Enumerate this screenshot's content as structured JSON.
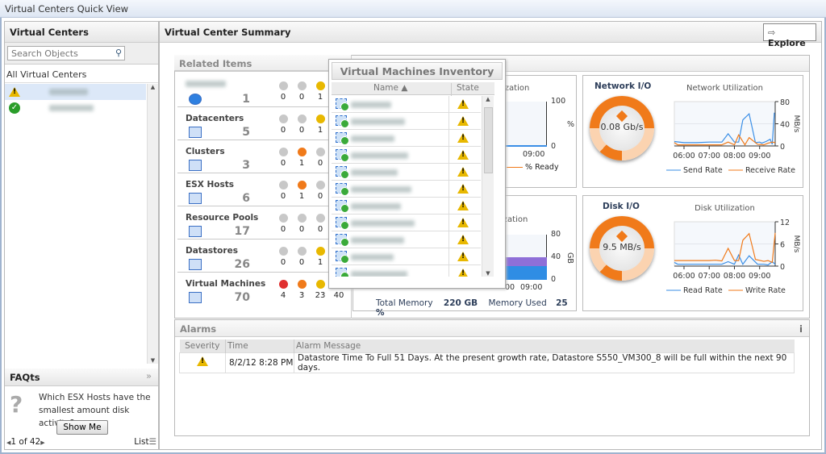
{
  "window": {
    "title": "Virtual Centers Quick View"
  },
  "left": {
    "title": "Virtual Centers",
    "search_placeholder": "Search Objects",
    "all_label": "All Virtual Centers",
    "centers": [
      {
        "status": "warning"
      },
      {
        "status": "ok"
      }
    ],
    "faq": {
      "title": "FAQts",
      "question": "Which ESX Hosts have the smallest amount disk activity?",
      "button": "Show Me",
      "pager": "1 of 42",
      "list_label": "List"
    }
  },
  "summary": {
    "title": "Virtual Center Summary",
    "explore": "Explore",
    "related": {
      "title": "Related Items",
      "items": [
        {
          "label": "",
          "count": "1",
          "icon": "vcenter-icon",
          "sev": [
            "0",
            "0",
            "1"
          ],
          "sev_active": [
            false,
            false,
            true
          ]
        },
        {
          "label": "Datacenters",
          "count": "5",
          "icon": "datacenter-icon",
          "sev": [
            "0",
            "0",
            "1"
          ],
          "sev_active": [
            false,
            false,
            true
          ]
        },
        {
          "label": "Clusters",
          "count": "3",
          "icon": "cluster-icon",
          "sev": [
            "0",
            "1",
            "0"
          ],
          "sev_active": [
            false,
            true,
            false
          ]
        },
        {
          "label": "ESX Hosts",
          "count": "6",
          "icon": "host-icon",
          "sev": [
            "0",
            "1",
            "0"
          ],
          "sev_active": [
            false,
            true,
            false
          ]
        },
        {
          "label": "Resource Pools",
          "count": "17",
          "icon": "resource-pool-icon",
          "sev": [
            "0",
            "0",
            "0"
          ],
          "sev_active": [
            false,
            false,
            false
          ]
        },
        {
          "label": "Datastores",
          "count": "26",
          "icon": "datastore-icon",
          "sev": [
            "0",
            "0",
            "1"
          ],
          "sev_active": [
            false,
            false,
            true
          ]
        },
        {
          "label": "Virtual Machines",
          "count": "70",
          "icon": "vm-icon",
          "sev": [
            "4",
            "3",
            "23",
            "40"
          ],
          "sev_active": [
            true,
            true,
            true,
            true
          ]
        }
      ]
    },
    "cpu": {
      "title_fragment": "ization",
      "y_ticks": [
        "100",
        "0"
      ],
      "unit": "%",
      "x_tick": "09:00",
      "legend": "% Ready"
    },
    "memory": {
      "title_fragment": "ization",
      "y_ticks": [
        "80",
        "40",
        "0"
      ],
      "unit": "GB",
      "x_ticks": [
        "00",
        "09:00"
      ],
      "total_label": "Total Memory",
      "total_value": "220 GB",
      "used_label": "Memory Used",
      "used_value": "25 %"
    },
    "network": {
      "gauge_title": "Network I/O",
      "gauge_value": "0.08 Gb/s"
    },
    "disk": {
      "gauge_title": "Disk I/O",
      "gauge_value": "9.5 MB/s"
    }
  },
  "inventory": {
    "title": "Virtual Machines Inventory",
    "col_name": "Name ▲",
    "col_state": "State",
    "rows": 11,
    "state": "warning"
  },
  "alarms": {
    "title": "Alarms",
    "info": "i",
    "columns": [
      "Severity",
      "Time",
      "Alarm Message"
    ],
    "rows": [
      {
        "severity": "warning",
        "time": "8/2/12 8:28 PM",
        "message": "Datastore Time To Full 51 Days. At the present growth rate, Datastore S550_VM300_8 will be full within the next 90 days."
      }
    ]
  },
  "chart_data": [
    {
      "type": "line",
      "title": "Network Utilization",
      "ylabel": "MB/s",
      "ylim": [
        0,
        80
      ],
      "y_ticks": [
        "80",
        "40",
        "0"
      ],
      "x_ticks": [
        "06:00",
        "07:00",
        "08:00",
        "09:00"
      ],
      "xlim": [
        "05:37",
        "09:37"
      ],
      "series": [
        {
          "name": "Send Rate",
          "color": "#3a8ee6",
          "x": [
            "05:37",
            "06:00",
            "06:30",
            "07:00",
            "07:30",
            "07:45",
            "08:00",
            "08:10",
            "08:20",
            "08:35",
            "08:50",
            "09:00",
            "09:05",
            "09:15",
            "09:25",
            "09:30",
            "09:35"
          ],
          "y": [
            8,
            6,
            6,
            7,
            7,
            22,
            7,
            7,
            47,
            58,
            6,
            7,
            5,
            8,
            12,
            3,
            60
          ]
        },
        {
          "name": "Receive Rate",
          "color": "#f07a1a",
          "x": [
            "05:37",
            "05:45",
            "07:30",
            "07:45",
            "08:00",
            "08:10",
            "08:25",
            "08:35",
            "08:55",
            "09:10",
            "09:20",
            "09:30",
            "09:37"
          ],
          "y": [
            6,
            2,
            2,
            7,
            2,
            20,
            2,
            15,
            3,
            2,
            5,
            7,
            6
          ]
        }
      ]
    },
    {
      "type": "line",
      "title": "Disk Utilization",
      "ylabel": "MB/s",
      "ylim": [
        0,
        12
      ],
      "y_ticks": [
        "12",
        "6",
        "0"
      ],
      "x_ticks": [
        "06:00",
        "07:00",
        "08:00",
        "09:00"
      ],
      "xlim": [
        "05:37",
        "09:37"
      ],
      "series": [
        {
          "name": "Read Rate",
          "color": "#3a8ee6",
          "x": [
            "05:37",
            "05:45",
            "07:30",
            "07:45",
            "08:00",
            "08:10",
            "08:20",
            "08:35",
            "08:55",
            "09:10",
            "09:20",
            "09:30",
            "09:37"
          ],
          "y": [
            1,
            0.5,
            0.5,
            1.2,
            0.5,
            3,
            0.5,
            2.8,
            0.5,
            0.5,
            0.3,
            1.2,
            0.5
          ]
        },
        {
          "name": "Write Rate",
          "color": "#f07a1a",
          "x": [
            "05:37",
            "07:00",
            "07:15",
            "07:30",
            "07:45",
            "08:00",
            "08:10",
            "08:20",
            "08:35",
            "08:50",
            "09:10",
            "09:20",
            "09:30",
            "09:37"
          ],
          "y": [
            1.5,
            1.5,
            1.6,
            1.4,
            4.8,
            1.5,
            1.5,
            7,
            8.8,
            1.8,
            1.3,
            1.5,
            1.0,
            9
          ]
        }
      ]
    }
  ]
}
